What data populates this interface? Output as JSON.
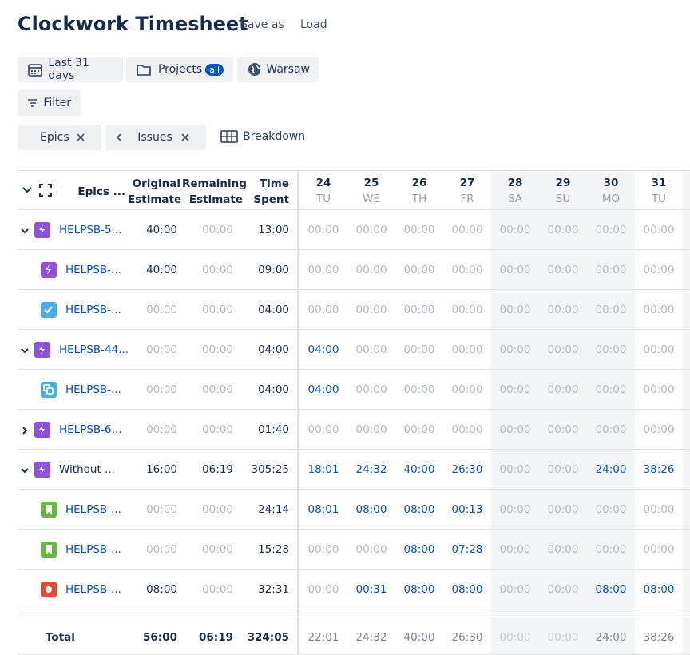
{
  "header": {
    "title": "Clockwork Timesheet",
    "actions": [
      "Save as",
      "Load"
    ]
  },
  "filters": {
    "period": "Last 31 days",
    "projects": "Projects",
    "projects_badge": "all",
    "timezone": "Warsaw",
    "filter": "Filter"
  },
  "grouping": {
    "levels": [
      "Epics",
      "Issues"
    ],
    "breakdown": "Breakdown"
  },
  "table": {
    "columns": [
      "Epics ...",
      "Original Estimate",
      "Remaining Estimate",
      "Time Spent"
    ],
    "days": [
      {
        "day": "24",
        "weekday": "TU",
        "shaded": false
      },
      {
        "day": "25",
        "weekday": "WE",
        "shaded": false
      },
      {
        "day": "26",
        "weekday": "TH",
        "shaded": false
      },
      {
        "day": "27",
        "weekday": "FR",
        "shaded": false
      },
      {
        "day": "28",
        "weekday": "SA",
        "shaded": true
      },
      {
        "day": "29",
        "weekday": "SU",
        "shaded": true
      },
      {
        "day": "30",
        "weekday": "MO",
        "shaded": true
      },
      {
        "day": "31",
        "weekday": "TU",
        "shaded": false
      }
    ],
    "rows": [
      {
        "level": 0,
        "expanded": true,
        "icon": "epic",
        "key": "HELPSB-5...",
        "original": "40:00",
        "remaining": "00:00",
        "spent": "13:00",
        "days": [
          "00:00",
          "00:00",
          "00:00",
          "00:00",
          "00:00",
          "00:00",
          "00:00",
          "00:00"
        ]
      },
      {
        "level": 1,
        "icon": "epic",
        "key": "HELPSB-...",
        "original": "40:00",
        "remaining": "00:00",
        "spent": "09:00",
        "days": [
          "00:00",
          "00:00",
          "00:00",
          "00:00",
          "00:00",
          "00:00",
          "00:00",
          "00:00"
        ]
      },
      {
        "level": 1,
        "icon": "task",
        "key": "HELPSB-...",
        "original": "00:00",
        "remaining": "00:00",
        "spent": "04:00",
        "days": [
          "00:00",
          "00:00",
          "00:00",
          "00:00",
          "00:00",
          "00:00",
          "00:00",
          "00:00"
        ]
      },
      {
        "level": 0,
        "expanded": true,
        "icon": "epic",
        "key": "HELPSB-44...",
        "original": "00:00",
        "remaining": "00:00",
        "spent": "04:00",
        "days": [
          "04:00",
          "00:00",
          "00:00",
          "00:00",
          "00:00",
          "00:00",
          "00:00",
          "00:00"
        ]
      },
      {
        "level": 1,
        "icon": "subtask",
        "key": "HELPSB-...",
        "original": "00:00",
        "remaining": "00:00",
        "spent": "04:00",
        "days": [
          "04:00",
          "00:00",
          "00:00",
          "00:00",
          "00:00",
          "00:00",
          "00:00",
          "00:00"
        ]
      },
      {
        "level": 0,
        "expanded": false,
        "icon": "epic",
        "key": "HELPSB-6...",
        "original": "00:00",
        "remaining": "00:00",
        "spent": "01:40",
        "days": [
          "00:00",
          "00:00",
          "00:00",
          "00:00",
          "00:00",
          "00:00",
          "00:00",
          "00:00"
        ]
      },
      {
        "level": 0,
        "expanded": true,
        "icon": "epic",
        "plain": true,
        "key": "Without ...",
        "original": "16:00",
        "remaining": "06:19",
        "spent": "305:25",
        "days": [
          "18:01",
          "24:32",
          "40:00",
          "26:30",
          "00:00",
          "00:00",
          "24:00",
          "38:26"
        ]
      },
      {
        "level": 1,
        "icon": "story",
        "key": "HELPSB-...",
        "original": "00:00",
        "remaining": "00:00",
        "spent": "24:14",
        "days": [
          "08:01",
          "08:00",
          "08:00",
          "00:13",
          "00:00",
          "00:00",
          "00:00",
          "00:00"
        ]
      },
      {
        "level": 1,
        "icon": "story",
        "key": "HELPSB-...",
        "original": "00:00",
        "remaining": "00:00",
        "spent": "15:28",
        "days": [
          "00:00",
          "00:00",
          "08:00",
          "07:28",
          "00:00",
          "00:00",
          "00:00",
          "00:00"
        ]
      },
      {
        "level": 1,
        "icon": "bug",
        "key": "HELPSB-...",
        "original": "08:00",
        "remaining": "00:00",
        "spent": "32:31",
        "days": [
          "00:00",
          "00:31",
          "08:00",
          "08:00",
          "00:00",
          "00:00",
          "08:00",
          "08:00"
        ]
      }
    ],
    "total": {
      "label": "Total",
      "original": "56:00",
      "remaining": "06:19",
      "spent": "324:05",
      "days": [
        "22:01",
        "24:32",
        "40:00",
        "26:30",
        "00:00",
        "00:00",
        "24:00",
        "38:26"
      ]
    }
  }
}
